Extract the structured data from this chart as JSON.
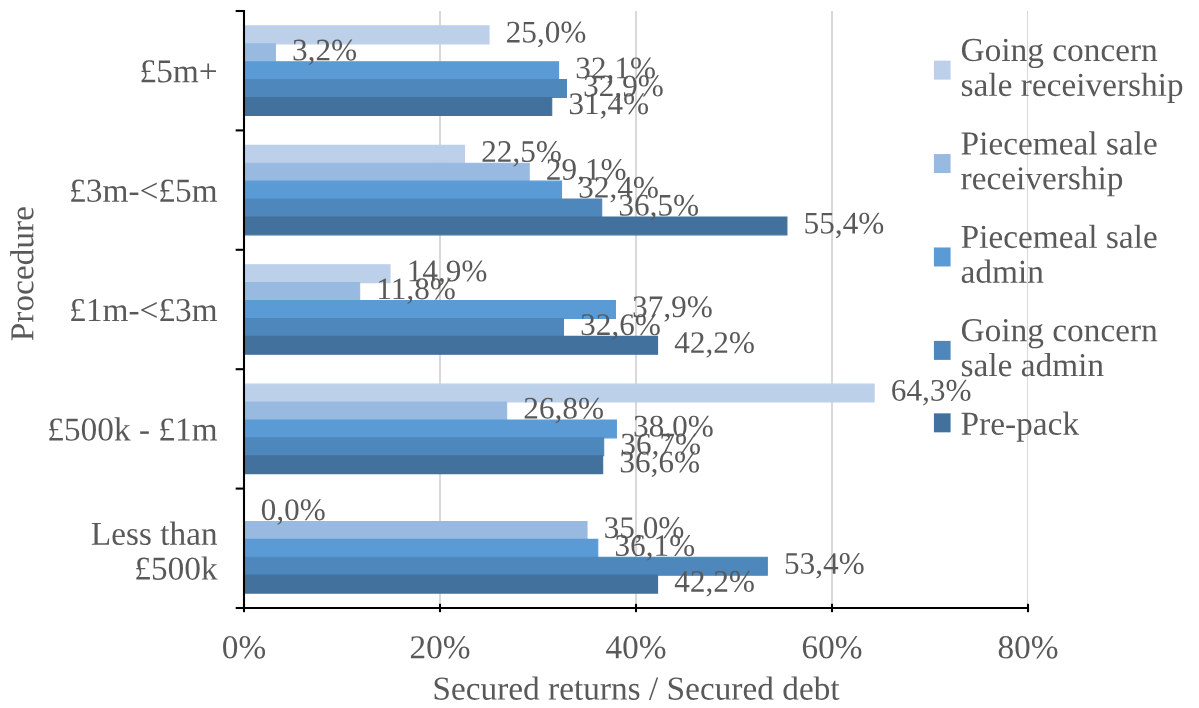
{
  "chart_data": {
    "type": "bar",
    "orientation": "horizontal",
    "xlabel": "Secured returns / Secured debt",
    "ylabel": "Procedure",
    "categories": [
      "£5m+",
      "£3m-<£5m",
      "£1m-<£3m",
      "£500k - £1m",
      "Less than\n£500k"
    ],
    "series": [
      {
        "name": "Going concern\nsale receivership",
        "color": "#bdd0ea",
        "values": [
          25.0,
          22.5,
          14.9,
          64.3,
          0.0
        ],
        "value_labels": [
          "25,0%",
          "22,5%",
          "14,9%",
          "64,3%",
          "0,0%"
        ]
      },
      {
        "name": "Piecemeal sale\nreceivership",
        "color": "#98b9e0",
        "values": [
          3.2,
          29.1,
          11.8,
          26.8,
          35.0
        ],
        "value_labels": [
          "3,2%",
          "29,1%",
          "11,8%",
          "26,8%",
          "35,0%"
        ]
      },
      {
        "name": "Piecemeal sale\nadmin",
        "color": "#5b9bd5",
        "values": [
          32.1,
          32.4,
          37.9,
          38.0,
          36.1
        ],
        "value_labels": [
          "32,1%",
          "32,4%",
          "37,9%",
          "38,0%",
          "36,1%"
        ]
      },
      {
        "name": "Going concern\nsale admin",
        "color": "#4e87bc",
        "values": [
          32.9,
          36.5,
          32.6,
          36.7,
          53.4
        ],
        "value_labels": [
          "32,9%",
          "36,5%",
          "32,6%",
          "36,7%",
          "53,4%"
        ]
      },
      {
        "name": "Pre-pack",
        "color": "#41719c",
        "values": [
          31.4,
          55.4,
          42.2,
          36.6,
          42.2
        ],
        "value_labels": [
          "31,4%",
          "55,4%",
          "42,2%",
          "36,6%",
          "42,2%"
        ]
      }
    ],
    "xlim": [
      0,
      80
    ],
    "xticks": [
      {
        "value": 0,
        "label": "0%"
      },
      {
        "value": 20,
        "label": "20%"
      },
      {
        "value": 40,
        "label": "40%"
      },
      {
        "value": 60,
        "label": "60%"
      },
      {
        "value": 80,
        "label": "80%"
      }
    ],
    "grid": "x",
    "legend": "right"
  }
}
